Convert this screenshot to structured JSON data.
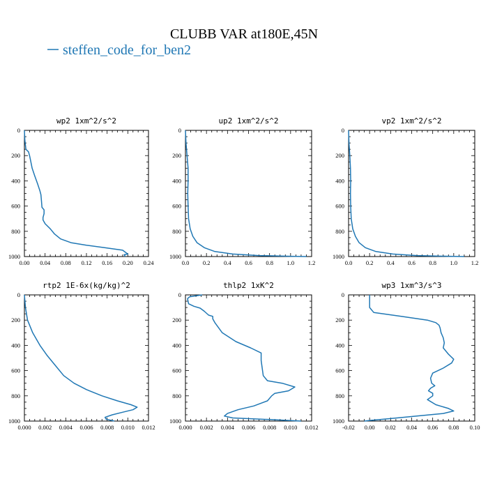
{
  "page": {
    "title": "CLUBB VAR at180E,45N",
    "line_color": "#1f77b4",
    "legend": {
      "label": "steffen_code_for_ben2",
      "color": "#1f77b4"
    }
  },
  "chart_data": [
    {
      "type": "line",
      "title": "wp2  1xm^2/s^2",
      "xlim": [
        0,
        0.24
      ],
      "ylim": [
        1000,
        0
      ],
      "xticks": [
        "0.00",
        "0.04",
        "0.08",
        "0.12",
        "0.16",
        "0.20",
        "0.24"
      ],
      "yticks": [
        "0",
        "200",
        "400",
        "600",
        "800",
        "1000"
      ],
      "series": [
        {
          "x": [
            0.0,
            0.001,
            0.003,
            0.008,
            0.01,
            0.012,
            0.015,
            0.02,
            0.026,
            0.03,
            0.032,
            0.033,
            0.034,
            0.038,
            0.038,
            0.036,
            0.036,
            0.04,
            0.05,
            0.058,
            0.07,
            0.09,
            0.12,
            0.155,
            0.19,
            0.2,
            0.193,
            0.195
          ],
          "y": [
            0,
            80,
            150,
            170,
            200,
            240,
            300,
            360,
            430,
            480,
            510,
            560,
            610,
            630,
            660,
            690,
            710,
            740,
            780,
            820,
            860,
            890,
            910,
            930,
            950,
            980,
            985,
            1000
          ]
        }
      ]
    },
    {
      "type": "line",
      "title": "up2  1xm^2/s^2",
      "xlim": [
        0,
        1.2
      ],
      "ylim": [
        1000,
        0
      ],
      "xticks": [
        "0.0",
        "0.2",
        "0.4",
        "0.6",
        "0.8",
        "1.0",
        "1.2"
      ],
      "yticks": [
        "0",
        "200",
        "400",
        "600",
        "800",
        "1000"
      ],
      "series": [
        {
          "x": [
            0.0,
            0.005,
            0.015,
            0.025,
            0.025,
            0.022,
            0.025,
            0.03,
            0.045,
            0.07,
            0.11,
            0.18,
            0.28,
            0.45,
            0.7,
            1.0,
            1.15
          ],
          "y": [
            0,
            100,
            200,
            300,
            400,
            500,
            600,
            700,
            780,
            840,
            890,
            930,
            960,
            980,
            992,
            998,
            1000
          ]
        }
      ]
    },
    {
      "type": "line",
      "title": "vp2  1xm^2/s^2",
      "xlim": [
        0,
        1.2
      ],
      "ylim": [
        1000,
        0
      ],
      "xticks": [
        "0.0",
        "0.2",
        "0.4",
        "0.6",
        "0.8",
        "1.0",
        "1.2"
      ],
      "yticks": [
        "0",
        "200",
        "400",
        "600",
        "800",
        "1000"
      ],
      "series": [
        {
          "x": [
            0.0,
            0.004,
            0.012,
            0.018,
            0.02,
            0.018,
            0.02,
            0.025,
            0.04,
            0.065,
            0.1,
            0.16,
            0.26,
            0.42,
            0.65,
            0.95,
            1.1
          ],
          "y": [
            0,
            100,
            200,
            300,
            400,
            500,
            600,
            700,
            780,
            840,
            890,
            930,
            960,
            980,
            992,
            998,
            1000
          ]
        }
      ]
    },
    {
      "type": "line",
      "title": "rtp2  1E-6x(kg/kg)^2",
      "xlim": [
        0,
        0.012
      ],
      "ylim": [
        1000,
        0
      ],
      "xticks": [
        "0.000",
        "0.002",
        "0.004",
        "0.006",
        "0.008",
        "0.010",
        "0.012"
      ],
      "yticks": [
        "0",
        "200",
        "400",
        "600",
        "800",
        "1000"
      ],
      "series": [
        {
          "x": [
            0.0,
            0.0001,
            0.0003,
            0.0008,
            0.0015,
            0.0022,
            0.003,
            0.0038,
            0.0048,
            0.006,
            0.0075,
            0.009,
            0.0103,
            0.0109,
            0.0105,
            0.0095,
            0.0085,
            0.0078,
            0.0079,
            0.0087
          ],
          "y": [
            0,
            100,
            200,
            300,
            400,
            480,
            560,
            640,
            700,
            750,
            800,
            840,
            870,
            890,
            910,
            930,
            950,
            970,
            985,
            1000
          ]
        }
      ]
    },
    {
      "type": "line",
      "title": "thlp2  1xK^2",
      "xlim": [
        0,
        0.012
      ],
      "ylim": [
        1000,
        0
      ],
      "xticks": [
        "0.000",
        "0.002",
        "0.004",
        "0.006",
        "0.008",
        "0.010",
        "0.012"
      ],
      "yticks": [
        "0",
        "200",
        "400",
        "600",
        "800",
        "1000"
      ],
      "series": [
        {
          "x": [
            0.0016,
            0.0012,
            0.0008,
            0.0004,
            0.0002,
            0.0003,
            0.0008,
            0.0014,
            0.0018,
            0.0022,
            0.0026,
            0.0026,
            0.0028,
            0.0035,
            0.0048,
            0.0062,
            0.0072,
            0.0072,
            0.0073,
            0.0074,
            0.0078,
            0.0092,
            0.0104,
            0.0098,
            0.0085,
            0.0082,
            0.0078,
            0.0065,
            0.005,
            0.004,
            0.0037,
            0.0045,
            0.008,
            0.011
          ],
          "y": [
            0,
            5,
            10,
            15,
            30,
            70,
            90,
            105,
            130,
            160,
            170,
            190,
            220,
            300,
            370,
            420,
            460,
            520,
            580,
            640,
            680,
            700,
            730,
            760,
            780,
            800,
            840,
            880,
            910,
            940,
            960,
            975,
            988,
            1000
          ]
        }
      ]
    },
    {
      "type": "line",
      "title": "wp3  1xm^3/s^3",
      "xlim": [
        -0.02,
        0.1
      ],
      "ylim": [
        1000,
        0
      ],
      "xticks": [
        "-0.02",
        "0.00",
        "0.02",
        "0.04",
        "0.06",
        "0.08",
        "0.10"
      ],
      "yticks": [
        "0",
        "200",
        "400",
        "600",
        "800",
        "1000"
      ],
      "series": [
        {
          "x": [
            0.0,
            0.0,
            0.0,
            0.004,
            0.03,
            0.055,
            0.063,
            0.066,
            0.067,
            0.068,
            0.07,
            0.071,
            0.07,
            0.075,
            0.08,
            0.078,
            0.07,
            0.06,
            0.058,
            0.059,
            0.062,
            0.058,
            0.056,
            0.06,
            0.06,
            0.055,
            0.063,
            0.075,
            0.08,
            0.07,
            0.045,
            0.02,
            0.0,
            -0.005
          ],
          "y": [
            0,
            50,
            100,
            140,
            170,
            200,
            220,
            240,
            260,
            300,
            340,
            380,
            420,
            470,
            510,
            540,
            580,
            620,
            660,
            700,
            720,
            740,
            760,
            780,
            800,
            830,
            870,
            900,
            920,
            940,
            960,
            980,
            995,
            1000
          ]
        }
      ]
    }
  ]
}
